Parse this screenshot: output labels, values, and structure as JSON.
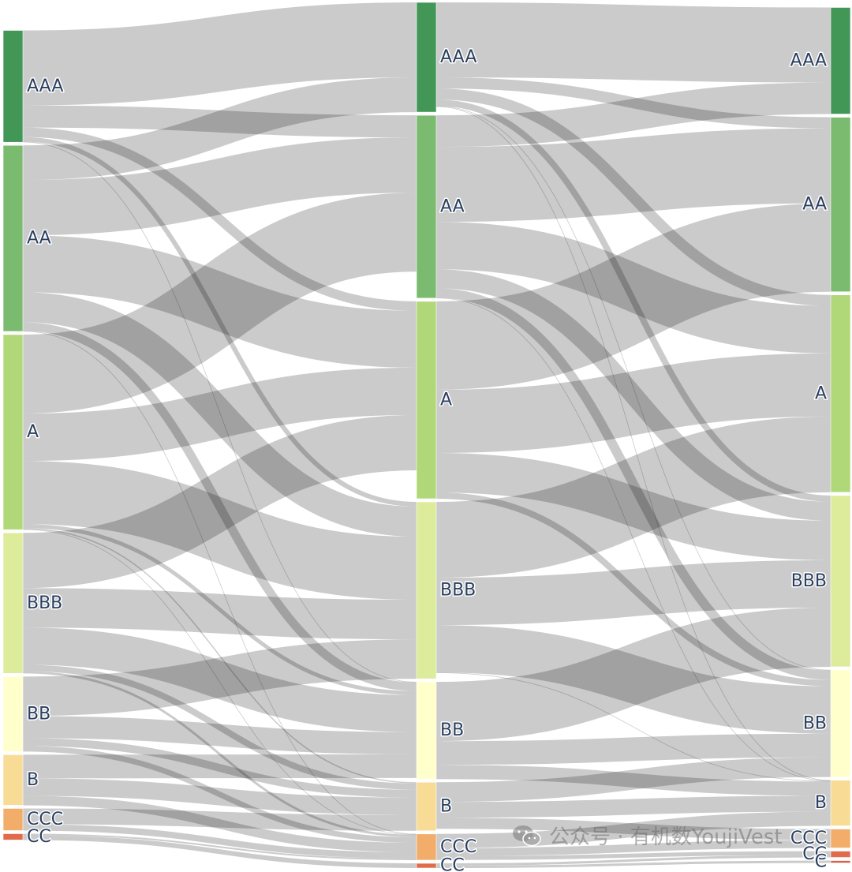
{
  "chart_data": {
    "type": "sankey",
    "title": "",
    "stages": [
      {
        "name": "",
        "nodes": [
          "AAA",
          "AA",
          "A",
          "BBB",
          "BB",
          "B",
          "CCC",
          "CC"
        ]
      },
      {
        "name": "",
        "nodes": [
          "AAA",
          "AA",
          "A",
          "BBB",
          "BB",
          "B",
          "CCC",
          "CC"
        ]
      },
      {
        "name": "",
        "nodes": [
          "AAA",
          "AA",
          "A",
          "BBB",
          "BB",
          "B",
          "CCC",
          "CC",
          "C"
        ]
      }
    ],
    "node_colors": {
      "AAA": "#429656",
      "AA": "#7bbb6f",
      "A": "#b1d878",
      "BBB": "#dcec9a",
      "BB": "#ffffcc",
      "B": "#f8dc96",
      "CCC": "#f2ad6b",
      "CC": "#e06c4a",
      "C": "#d6604d"
    },
    "link_color": "#a8a8a8",
    "links": [
      {
        "stage": 0,
        "source": "AAA",
        "target": "AAA",
        "value": 95
      },
      {
        "stage": 0,
        "source": "AAA",
        "target": "AA",
        "value": 28
      },
      {
        "stage": 0,
        "source": "AAA",
        "target": "A",
        "value": 12
      },
      {
        "stage": 0,
        "source": "AAA",
        "target": "BBB",
        "value": 6
      },
      {
        "stage": 0,
        "source": "AAA",
        "target": "BB",
        "value": 0.6
      },
      {
        "stage": 0,
        "source": "AA",
        "target": "AAA",
        "value": 44
      },
      {
        "stage": 0,
        "source": "AA",
        "target": "AA",
        "value": 70
      },
      {
        "stage": 0,
        "source": "AA",
        "target": "A",
        "value": 72
      },
      {
        "stage": 0,
        "source": "AA",
        "target": "BBB",
        "value": 38
      },
      {
        "stage": 0,
        "source": "AA",
        "target": "BB",
        "value": 11
      },
      {
        "stage": 0,
        "source": "AA",
        "target": "CCC",
        "value": 0.6
      },
      {
        "stage": 0,
        "source": "A",
        "target": "AA",
        "value": 100
      },
      {
        "stage": 0,
        "source": "A",
        "target": "A",
        "value": 60
      },
      {
        "stage": 0,
        "source": "A",
        "target": "BBB",
        "value": 80
      },
      {
        "stage": 0,
        "source": "A",
        "target": "BB",
        "value": 5
      },
      {
        "stage": 0,
        "source": "A",
        "target": "B",
        "value": 1.5
      },
      {
        "stage": 0,
        "source": "A",
        "target": "CCC",
        "value": 0.6
      },
      {
        "stage": 0,
        "source": "BBB",
        "target": "A",
        "value": 70
      },
      {
        "stage": 0,
        "source": "BBB",
        "target": "BBB",
        "value": 50
      },
      {
        "stage": 0,
        "source": "BBB",
        "target": "BB",
        "value": 47
      },
      {
        "stage": 0,
        "source": "BBB",
        "target": "B",
        "value": 8
      },
      {
        "stage": 0,
        "source": "BBB",
        "target": "CCC",
        "value": 3
      },
      {
        "stage": 0,
        "source": "BB",
        "target": "BBB",
        "value": 50
      },
      {
        "stage": 0,
        "source": "BB",
        "target": "BB",
        "value": 28
      },
      {
        "stage": 0,
        "source": "BB",
        "target": "B",
        "value": 10
      },
      {
        "stage": 0,
        "source": "BB",
        "target": "CCC",
        "value": 7
      },
      {
        "stage": 0,
        "source": "B",
        "target": "BB",
        "value": 30
      },
      {
        "stage": 0,
        "source": "B",
        "target": "B",
        "value": 22
      },
      {
        "stage": 0,
        "source": "B",
        "target": "CCC",
        "value": 12
      },
      {
        "stage": 0,
        "source": "CCC",
        "target": "B",
        "value": 20
      },
      {
        "stage": 0,
        "source": "CCC",
        "target": "CCC",
        "value": 8
      },
      {
        "stage": 0,
        "source": "CC",
        "target": "CCC",
        "value": 2
      },
      {
        "stage": 0,
        "source": "CC",
        "target": "CC",
        "value": 6
      },
      {
        "stage": 1,
        "source": "AAA",
        "target": "AAA",
        "value": 95
      },
      {
        "stage": 1,
        "source": "AAA",
        "target": "AA",
        "value": 14
      },
      {
        "stage": 1,
        "source": "AAA",
        "target": "A",
        "value": 14
      },
      {
        "stage": 1,
        "source": "AAA",
        "target": "BBB",
        "value": 8
      },
      {
        "stage": 1,
        "source": "AAA",
        "target": "BB",
        "value": 0.6
      },
      {
        "stage": 1,
        "source": "AAA",
        "target": "B",
        "value": 0.6
      },
      {
        "stage": 1,
        "source": "AA",
        "target": "AAA",
        "value": 40
      },
      {
        "stage": 1,
        "source": "AA",
        "target": "AA",
        "value": 95
      },
      {
        "stage": 1,
        "source": "AA",
        "target": "A",
        "value": 60
      },
      {
        "stage": 1,
        "source": "AA",
        "target": "BBB",
        "value": 24
      },
      {
        "stage": 1,
        "source": "AA",
        "target": "BB",
        "value": 12
      },
      {
        "stage": 1,
        "source": "AA",
        "target": "B",
        "value": 0.6
      },
      {
        "stage": 1,
        "source": "A",
        "target": "AA",
        "value": 112
      },
      {
        "stage": 1,
        "source": "A",
        "target": "A",
        "value": 80
      },
      {
        "stage": 1,
        "source": "A",
        "target": "BBB",
        "value": 50
      },
      {
        "stage": 1,
        "source": "A",
        "target": "BB",
        "value": 8
      },
      {
        "stage": 1,
        "source": "BBB",
        "target": "A",
        "value": 96
      },
      {
        "stage": 1,
        "source": "BBB",
        "target": "BBB",
        "value": 60
      },
      {
        "stage": 1,
        "source": "BBB",
        "target": "BB",
        "value": 60
      },
      {
        "stage": 1,
        "source": "BBB",
        "target": "B",
        "value": 0.6
      },
      {
        "stage": 1,
        "source": "BB",
        "target": "BBB",
        "value": 75
      },
      {
        "stage": 1,
        "source": "BB",
        "target": "BB",
        "value": 30
      },
      {
        "stage": 1,
        "source": "BB",
        "target": "B",
        "value": 18
      },
      {
        "stage": 1,
        "source": "B",
        "target": "BB",
        "value": 25
      },
      {
        "stage": 1,
        "source": "B",
        "target": "B",
        "value": 20
      },
      {
        "stage": 1,
        "source": "B",
        "target": "CCC",
        "value": 14
      },
      {
        "stage": 1,
        "source": "CCC",
        "target": "B",
        "value": 18
      },
      {
        "stage": 1,
        "source": "CCC",
        "target": "CCC",
        "value": 10
      },
      {
        "stage": 1,
        "source": "CCC",
        "target": "CC",
        "value": 5
      },
      {
        "stage": 1,
        "source": "CC",
        "target": "CC",
        "value": 3
      },
      {
        "stage": 1,
        "source": "CC",
        "target": "C",
        "value": 3
      }
    ]
  },
  "watermark": {
    "text": "公众号 · 有机数YoujiVest",
    "icon": "wechat-icon"
  }
}
